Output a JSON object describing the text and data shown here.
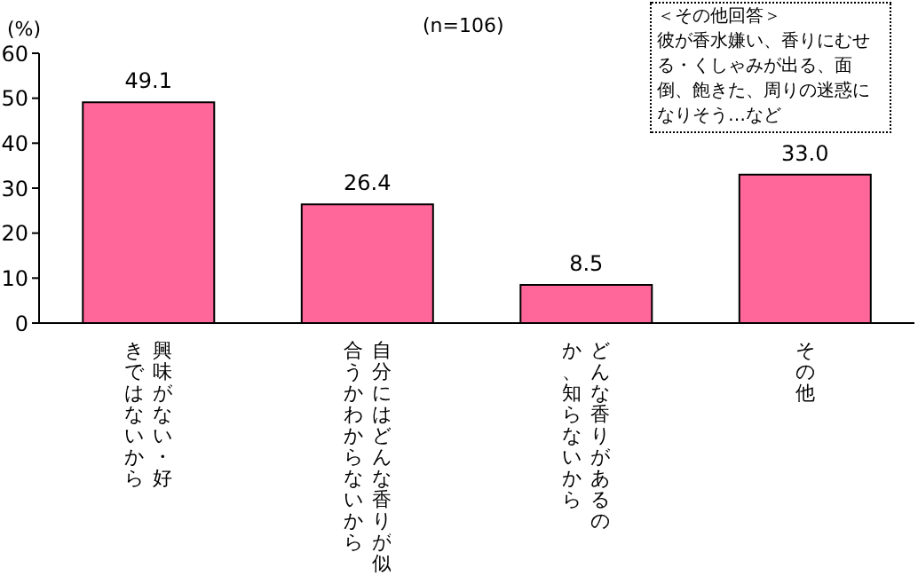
{
  "chart_data": {
    "type": "bar",
    "subtitle": "(n=106)",
    "ylabel": "(%)",
    "categories": [
      "興味がない・好きではないから",
      "自分にはどんな香りが似合うかわからないから",
      "どんな香りがあるのか、知らないから",
      "その他"
    ],
    "values": [
      49.1,
      26.4,
      8.5,
      33.0
    ],
    "value_labels": [
      "49.1",
      "26.4",
      "8.5",
      "33.0"
    ],
    "color": "#ff6699",
    "ylim": [
      0,
      60
    ],
    "yticks": [
      0,
      10,
      20,
      30,
      40,
      50,
      60
    ],
    "annotations": [
      "＜その他回答＞",
      "彼が香水嫌い、香りにむせる・くしゃみが出る、面倒、飽きた、周りの迷惑になりそう…など"
    ]
  }
}
